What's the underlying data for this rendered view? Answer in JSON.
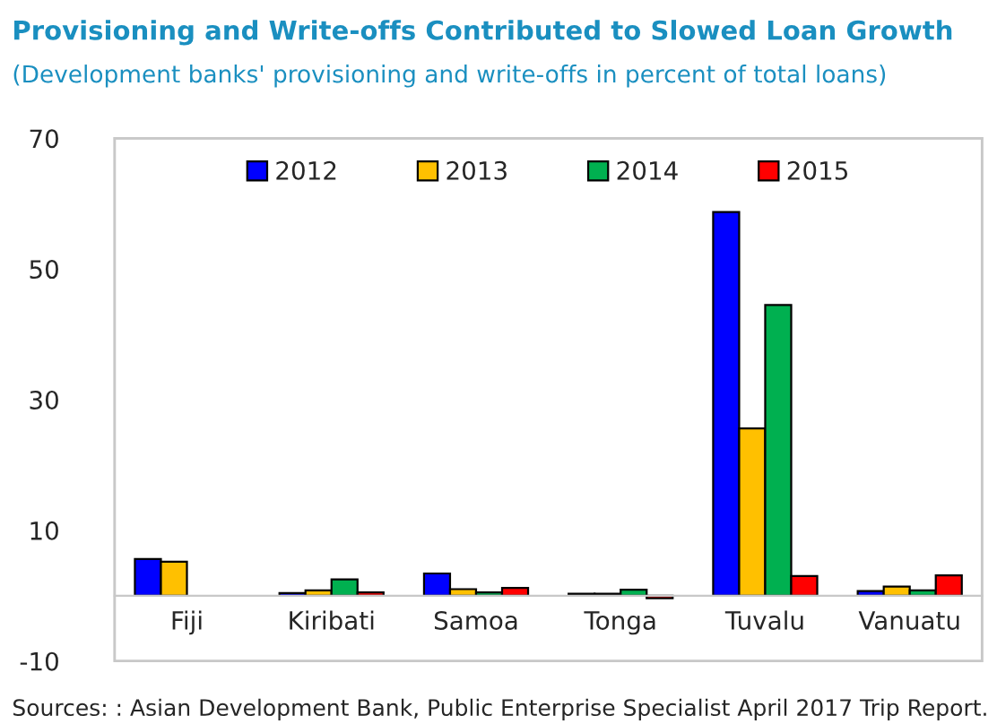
{
  "chart_data": {
    "type": "bar",
    "title": "Provisioning and Write-offs Contributed to Slowed Loan Growth",
    "subtitle": "(Development banks' provisioning and write-offs in percent of total loans)",
    "categories": [
      "Fiji",
      "Kiribati",
      "Samoa",
      "Tonga",
      "Tuvalu",
      "Vanuatu"
    ],
    "series": [
      {
        "name": "2012",
        "color": "#0000ff",
        "values": [
          5.6,
          0.4,
          3.4,
          0.3,
          58.7,
          0.7
        ]
      },
      {
        "name": "2013",
        "color": "#ffc000",
        "values": [
          5.2,
          0.8,
          1.0,
          0.3,
          25.6,
          1.4
        ]
      },
      {
        "name": "2014",
        "color": "#00b050",
        "values": [
          null,
          2.5,
          0.5,
          0.9,
          44.5,
          0.8
        ]
      },
      {
        "name": "2015",
        "color": "#ff0000",
        "values": [
          null,
          0.5,
          1.2,
          -0.4,
          3.0,
          3.1
        ]
      }
    ],
    "ylim": [
      -10,
      70
    ],
    "yticks": [
      -10,
      10,
      30,
      50,
      70
    ],
    "grid": false,
    "legend": "top",
    "annotations": [
      "Sources: : Asian Development Bank, Public Enterprise Specialist April 2017 Trip Report."
    ]
  }
}
